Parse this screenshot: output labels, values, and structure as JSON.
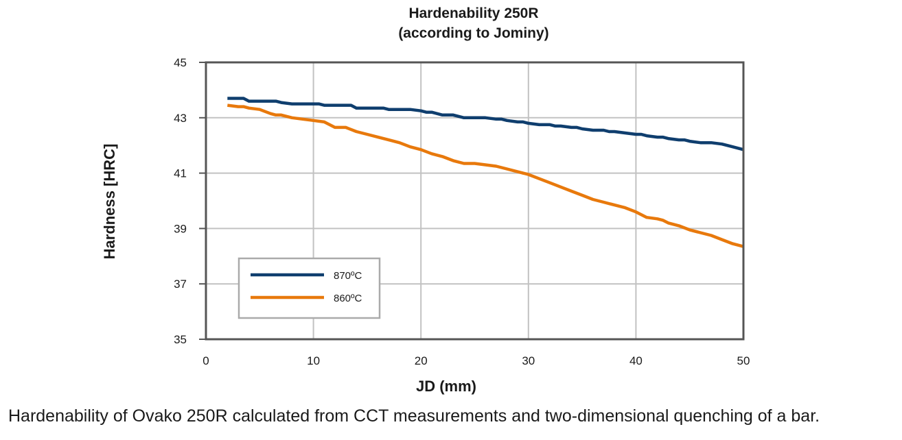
{
  "chart_data": {
    "type": "line",
    "title": "Hardenability 250R",
    "subtitle": "(according to Jominy)",
    "xlabel": "JD (mm)",
    "ylabel": "Hardness [HRC]",
    "xlim": [
      0,
      50
    ],
    "ylim": [
      35,
      45
    ],
    "xticks": [
      "0",
      "10",
      "20",
      "30",
      "40",
      "50"
    ],
    "yticks": [
      "35",
      "37",
      "39",
      "41",
      "43",
      "45"
    ],
    "grid": true,
    "legend_position": "bottom-left",
    "series": [
      {
        "name": "870ºC",
        "color": "#0f3e6e",
        "x": [
          2,
          3,
          3.5,
          4,
          5,
          6,
          6.5,
          7,
          8,
          9,
          10,
          10.5,
          11,
          12,
          13,
          13.5,
          14,
          15,
          16,
          16.5,
          17,
          18,
          19,
          20,
          20.5,
          21,
          22,
          22.5,
          23,
          24,
          25,
          26,
          27,
          27.5,
          28,
          29,
          29.5,
          30,
          31,
          32,
          32.5,
          33,
          34,
          34.5,
          35,
          36,
          37,
          37.5,
          38,
          39,
          40,
          40.5,
          41,
          42,
          42.5,
          43,
          44,
          44.5,
          45,
          46,
          46.5,
          47,
          48,
          48.5,
          49,
          50
        ],
        "y": [
          43.7,
          43.7,
          43.7,
          43.6,
          43.6,
          43.6,
          43.6,
          43.55,
          43.5,
          43.5,
          43.5,
          43.5,
          43.45,
          43.45,
          43.45,
          43.45,
          43.35,
          43.35,
          43.35,
          43.35,
          43.3,
          43.3,
          43.3,
          43.25,
          43.2,
          43.2,
          43.1,
          43.1,
          43.1,
          43.0,
          43.0,
          43.0,
          42.95,
          42.95,
          42.9,
          42.85,
          42.85,
          42.8,
          42.75,
          42.75,
          42.7,
          42.7,
          42.65,
          42.65,
          42.6,
          42.55,
          42.55,
          42.5,
          42.5,
          42.45,
          42.4,
          42.4,
          42.35,
          42.3,
          42.3,
          42.25,
          42.2,
          42.2,
          42.15,
          42.1,
          42.1,
          42.1,
          42.05,
          42.0,
          41.95,
          41.85
        ]
      },
      {
        "name": "860ºC",
        "color": "#e8790c",
        "x": [
          2,
          3,
          3.5,
          4,
          5,
          6,
          6.5,
          7,
          8,
          9,
          10,
          11,
          12,
          13,
          14,
          15,
          16,
          17,
          18,
          19,
          20,
          21,
          22,
          23,
          24,
          25,
          26,
          27,
          28,
          29,
          30,
          31,
          32,
          33,
          34,
          35,
          36,
          37,
          38,
          39,
          40,
          41,
          42,
          42.5,
          43,
          44,
          45,
          46,
          47,
          48,
          49,
          50
        ],
        "y": [
          43.45,
          43.4,
          43.4,
          43.35,
          43.3,
          43.15,
          43.1,
          43.1,
          43.0,
          42.95,
          42.9,
          42.85,
          42.65,
          42.65,
          42.5,
          42.4,
          42.3,
          42.2,
          42.1,
          41.95,
          41.85,
          41.7,
          41.6,
          41.45,
          41.35,
          41.35,
          41.3,
          41.25,
          41.15,
          41.05,
          40.95,
          40.8,
          40.65,
          40.5,
          40.35,
          40.2,
          40.05,
          39.95,
          39.85,
          39.75,
          39.6,
          39.4,
          39.35,
          39.3,
          39.2,
          39.1,
          38.95,
          38.85,
          38.75,
          38.6,
          38.45,
          38.35
        ]
      }
    ]
  },
  "caption": "Hardenability of Ovako 250R calculated from CCT measurements and two-dimensional quenching of a bar."
}
